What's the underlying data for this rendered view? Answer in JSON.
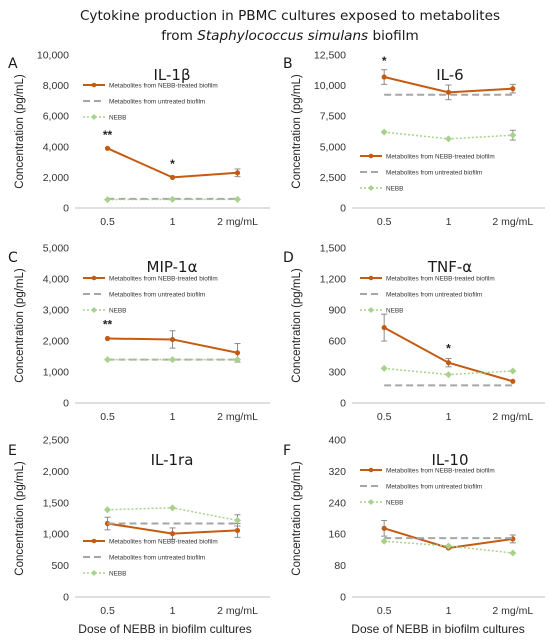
{
  "figure": {
    "title_line1": "Cytokine production in PBMC cultures exposed to metabolites",
    "title_line2_prefix": "from ",
    "title_line2_italic": "Staphylococcus simulans",
    "title_line2_suffix": " biofilm",
    "ylabel": "Concentration (pg/mL)",
    "xlabel": "Dose of NEBB in biofilm cultures"
  },
  "colors": {
    "treated": "#c55a11",
    "untreated": "#a6a6a6",
    "nebb": "#a9d18e"
  },
  "chart_data": [
    {
      "type": "line",
      "letter": "A",
      "title": "IL-1β",
      "categories": [
        "0.5",
        "1",
        "2 mg/mL"
      ],
      "ylim": [
        0,
        10000
      ],
      "yticks": [
        0,
        2000,
        4000,
        6000,
        8000,
        10000
      ],
      "ytick_labels": [
        "0",
        "2,000",
        "4,000",
        "6,000",
        "8,000",
        "10,000"
      ],
      "legend_position": "top",
      "series": [
        {
          "name": "Metabolites from NEBB-treated biofilm",
          "key": "treated",
          "values": [
            3900,
            2000,
            2300
          ],
          "errors": [
            0,
            0,
            250
          ]
        },
        {
          "name": "Metabolites from untreated biofilm",
          "key": "untreated",
          "values": [
            600,
            600,
            600
          ],
          "errors": [
            0,
            0,
            0
          ]
        },
        {
          "name": "NEBB",
          "key": "nebb",
          "values": [
            550,
            560,
            560
          ],
          "errors": [
            0,
            0,
            0
          ]
        }
      ],
      "annotations": [
        {
          "text": "**",
          "x": 0,
          "y": 4500
        },
        {
          "text": "*",
          "x": 1,
          "y": 2600
        }
      ]
    },
    {
      "type": "line",
      "letter": "B",
      "title": "IL-6",
      "categories": [
        "0.5",
        "1",
        "2 mg/mL"
      ],
      "ylim": [
        0,
        12500
      ],
      "yticks": [
        0,
        2500,
        5000,
        7500,
        10000,
        12500
      ],
      "ytick_labels": [
        "0",
        "2,500",
        "5,000",
        "7,500",
        "10,000",
        "12,500"
      ],
      "legend_position": "bottom",
      "series": [
        {
          "name": "Metabolites from NEBB-treated biofilm",
          "key": "treated",
          "values": [
            10700,
            9450,
            9750
          ],
          "errors": [
            600,
            600,
            350
          ]
        },
        {
          "name": "Metabolites from untreated biofilm",
          "key": "untreated",
          "values": [
            9250,
            9250,
            9250
          ],
          "errors": [
            0,
            0,
            0
          ]
        },
        {
          "name": "NEBB",
          "key": "nebb",
          "values": [
            6200,
            5650,
            5950
          ],
          "errors": [
            0,
            0,
            400
          ]
        }
      ],
      "annotations": [
        {
          "text": "*",
          "x": 0,
          "y": 11700
        }
      ]
    },
    {
      "type": "line",
      "letter": "C",
      "title": "MIP-1α",
      "categories": [
        "0.5",
        "1",
        "2 mg/mL"
      ],
      "ylim": [
        0,
        5000
      ],
      "yticks": [
        0,
        1000,
        2000,
        3000,
        4000,
        5000
      ],
      "ytick_labels": [
        "0",
        "1,000",
        "2,000",
        "3,000",
        "4,000",
        "5,000"
      ],
      "legend_position": "top",
      "series": [
        {
          "name": "Metabolites from NEBB-treated biofilm",
          "key": "treated",
          "values": [
            2080,
            2050,
            1620
          ],
          "errors": [
            0,
            280,
            300
          ]
        },
        {
          "name": "Metabolites from untreated biofilm",
          "key": "untreated",
          "values": [
            1400,
            1400,
            1400
          ],
          "errors": [
            0,
            0,
            0
          ]
        },
        {
          "name": "NEBB",
          "key": "nebb",
          "values": [
            1400,
            1400,
            1400
          ],
          "errors": [
            0,
            0,
            0
          ]
        }
      ],
      "annotations": [
        {
          "text": "**",
          "x": 0,
          "y": 2400
        }
      ]
    },
    {
      "type": "line",
      "letter": "D",
      "title": "TNF-α",
      "categories": [
        "0.5",
        "1",
        "2 mg/mL"
      ],
      "ylim": [
        0,
        1500
      ],
      "yticks": [
        0,
        300,
        600,
        900,
        1200,
        1500
      ],
      "ytick_labels": [
        "0",
        "300",
        "600",
        "900",
        "1,200",
        "1,500"
      ],
      "legend_position": "top",
      "series": [
        {
          "name": "Metabolites from NEBB-treated biofilm",
          "key": "treated",
          "values": [
            730,
            390,
            210
          ],
          "errors": [
            130,
            40,
            0
          ]
        },
        {
          "name": "Metabolites from untreated biofilm",
          "key": "untreated",
          "values": [
            170,
            170,
            170
          ],
          "errors": [
            0,
            0,
            0
          ]
        },
        {
          "name": "NEBB",
          "key": "nebb",
          "values": [
            335,
            275,
            310
          ],
          "errors": [
            0,
            0,
            0
          ]
        }
      ],
      "annotations": [
        {
          "text": "*",
          "x": 1,
          "y": 490
        }
      ]
    },
    {
      "type": "line",
      "letter": "E",
      "title": "IL-1ra",
      "categories": [
        "0.5",
        "1",
        "2 mg/mL"
      ],
      "ylim": [
        0,
        2500
      ],
      "yticks": [
        0,
        500,
        1000,
        1500,
        2000,
        2500
      ],
      "ytick_labels": [
        "0",
        "500",
        "1,000",
        "1,500",
        "2,000",
        "2,500"
      ],
      "legend_position": "bottom",
      "series": [
        {
          "name": "Metabolites from NEBB-treated biofilm",
          "key": "treated",
          "values": [
            1170,
            1010,
            1060
          ],
          "errors": [
            100,
            90,
            110
          ]
        },
        {
          "name": "Metabolites from untreated biofilm",
          "key": "untreated",
          "values": [
            1170,
            1170,
            1170
          ],
          "errors": [
            0,
            0,
            0
          ]
        },
        {
          "name": "NEBB",
          "key": "nebb",
          "values": [
            1390,
            1420,
            1220
          ],
          "errors": [
            0,
            0,
            90
          ]
        }
      ],
      "annotations": []
    },
    {
      "type": "line",
      "letter": "F",
      "title": "IL-10",
      "categories": [
        "0.5",
        "1",
        "2 mg/mL"
      ],
      "ylim": [
        0,
        400
      ],
      "yticks": [
        0,
        80,
        160,
        240,
        320,
        400
      ],
      "ytick_labels": [
        "0",
        "80",
        "160",
        "240",
        "320",
        "400"
      ],
      "legend_position": "top",
      "series": [
        {
          "name": "Metabolites from NEBB-treated biofilm",
          "key": "treated",
          "values": [
            175,
            125,
            148
          ],
          "errors": [
            20,
            0,
            10
          ]
        },
        {
          "name": "Metabolites from untreated biofilm",
          "key": "untreated",
          "values": [
            150,
            150,
            150
          ],
          "errors": [
            0,
            0,
            0
          ]
        },
        {
          "name": "NEBB",
          "key": "nebb",
          "values": [
            142,
            130,
            112
          ],
          "errors": [
            0,
            0,
            0
          ]
        }
      ],
      "annotations": []
    }
  ]
}
